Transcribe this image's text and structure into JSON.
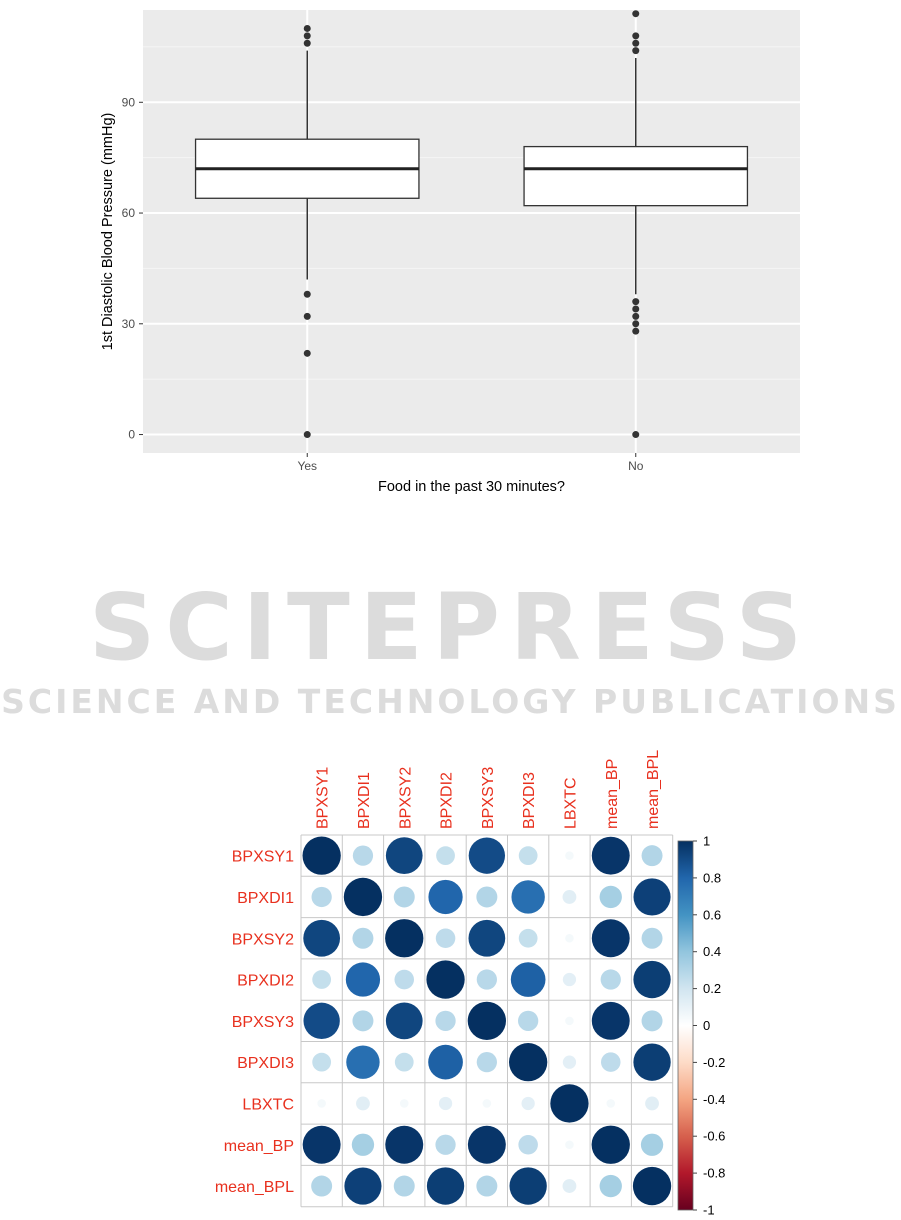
{
  "watermark": {
    "main": "SCITEPRESS",
    "sub": "SCIENCE AND TECHNOLOGY PUBLICATIONS"
  },
  "chart_data": [
    {
      "type": "box",
      "xlabel": "Food in the past 30 minutes?",
      "ylabel": "1st Diastolic Blood Pressure (mmHg)",
      "ylim": [
        -5,
        115
      ],
      "yticks": [
        0,
        30,
        60,
        90
      ],
      "grid": true,
      "background": "#ebebeb",
      "categories": [
        "Yes",
        "No"
      ],
      "boxes": [
        {
          "category": "Yes",
          "whisker_low": 42,
          "q1": 64,
          "median": 72,
          "q3": 80,
          "whisker_high": 104,
          "outliers": [
            110,
            108,
            106,
            38,
            32,
            22,
            0
          ]
        },
        {
          "category": "No",
          "whisker_low": 38,
          "q1": 62,
          "median": 72,
          "q3": 78,
          "whisker_high": 102,
          "outliers": [
            114,
            108,
            106,
            104,
            36,
            34,
            32,
            30,
            28,
            0
          ]
        }
      ]
    },
    {
      "type": "heatmap",
      "variables": [
        "BPXSY1",
        "BPXDI1",
        "BPXSY2",
        "BPXDI2",
        "BPXSY3",
        "BPXDI3",
        "LBXTC",
        "mean_BP",
        "mean_BPL"
      ],
      "matrix": [
        [
          1.0,
          0.28,
          0.92,
          0.24,
          0.9,
          0.24,
          0.05,
          0.98,
          0.3
        ],
        [
          0.28,
          1.0,
          0.3,
          0.8,
          0.3,
          0.76,
          0.13,
          0.34,
          0.94
        ],
        [
          0.92,
          0.3,
          1.0,
          0.26,
          0.92,
          0.24,
          0.05,
          0.98,
          0.3
        ],
        [
          0.24,
          0.8,
          0.26,
          1.0,
          0.28,
          0.82,
          0.12,
          0.28,
          0.95
        ],
        [
          0.9,
          0.3,
          0.92,
          0.28,
          1.0,
          0.28,
          0.05,
          0.98,
          0.3
        ],
        [
          0.24,
          0.76,
          0.24,
          0.82,
          0.28,
          1.0,
          0.12,
          0.26,
          0.95
        ],
        [
          0.05,
          0.13,
          0.05,
          0.12,
          0.05,
          0.12,
          1.0,
          0.05,
          0.13
        ],
        [
          0.98,
          0.34,
          0.98,
          0.28,
          0.98,
          0.26,
          0.05,
          1.0,
          0.34
        ],
        [
          0.3,
          0.94,
          0.3,
          0.95,
          0.3,
          0.95,
          0.13,
          0.34,
          1.0
        ]
      ],
      "legend_ticks": [
        "1",
        "0.8",
        "0.6",
        "0.4",
        "0.2",
        "0",
        "-0.2",
        "-0.4",
        "-0.6",
        "-0.8",
        "-1"
      ],
      "label_color": "#e8301e",
      "colors": {
        "strong_positive": "#053061",
        "positive": "#4393c3",
        "light": "#d1e5f0",
        "zero": "#ffffff",
        "negative": "#f4a582",
        "strong_negative": "#67001f"
      }
    }
  ]
}
